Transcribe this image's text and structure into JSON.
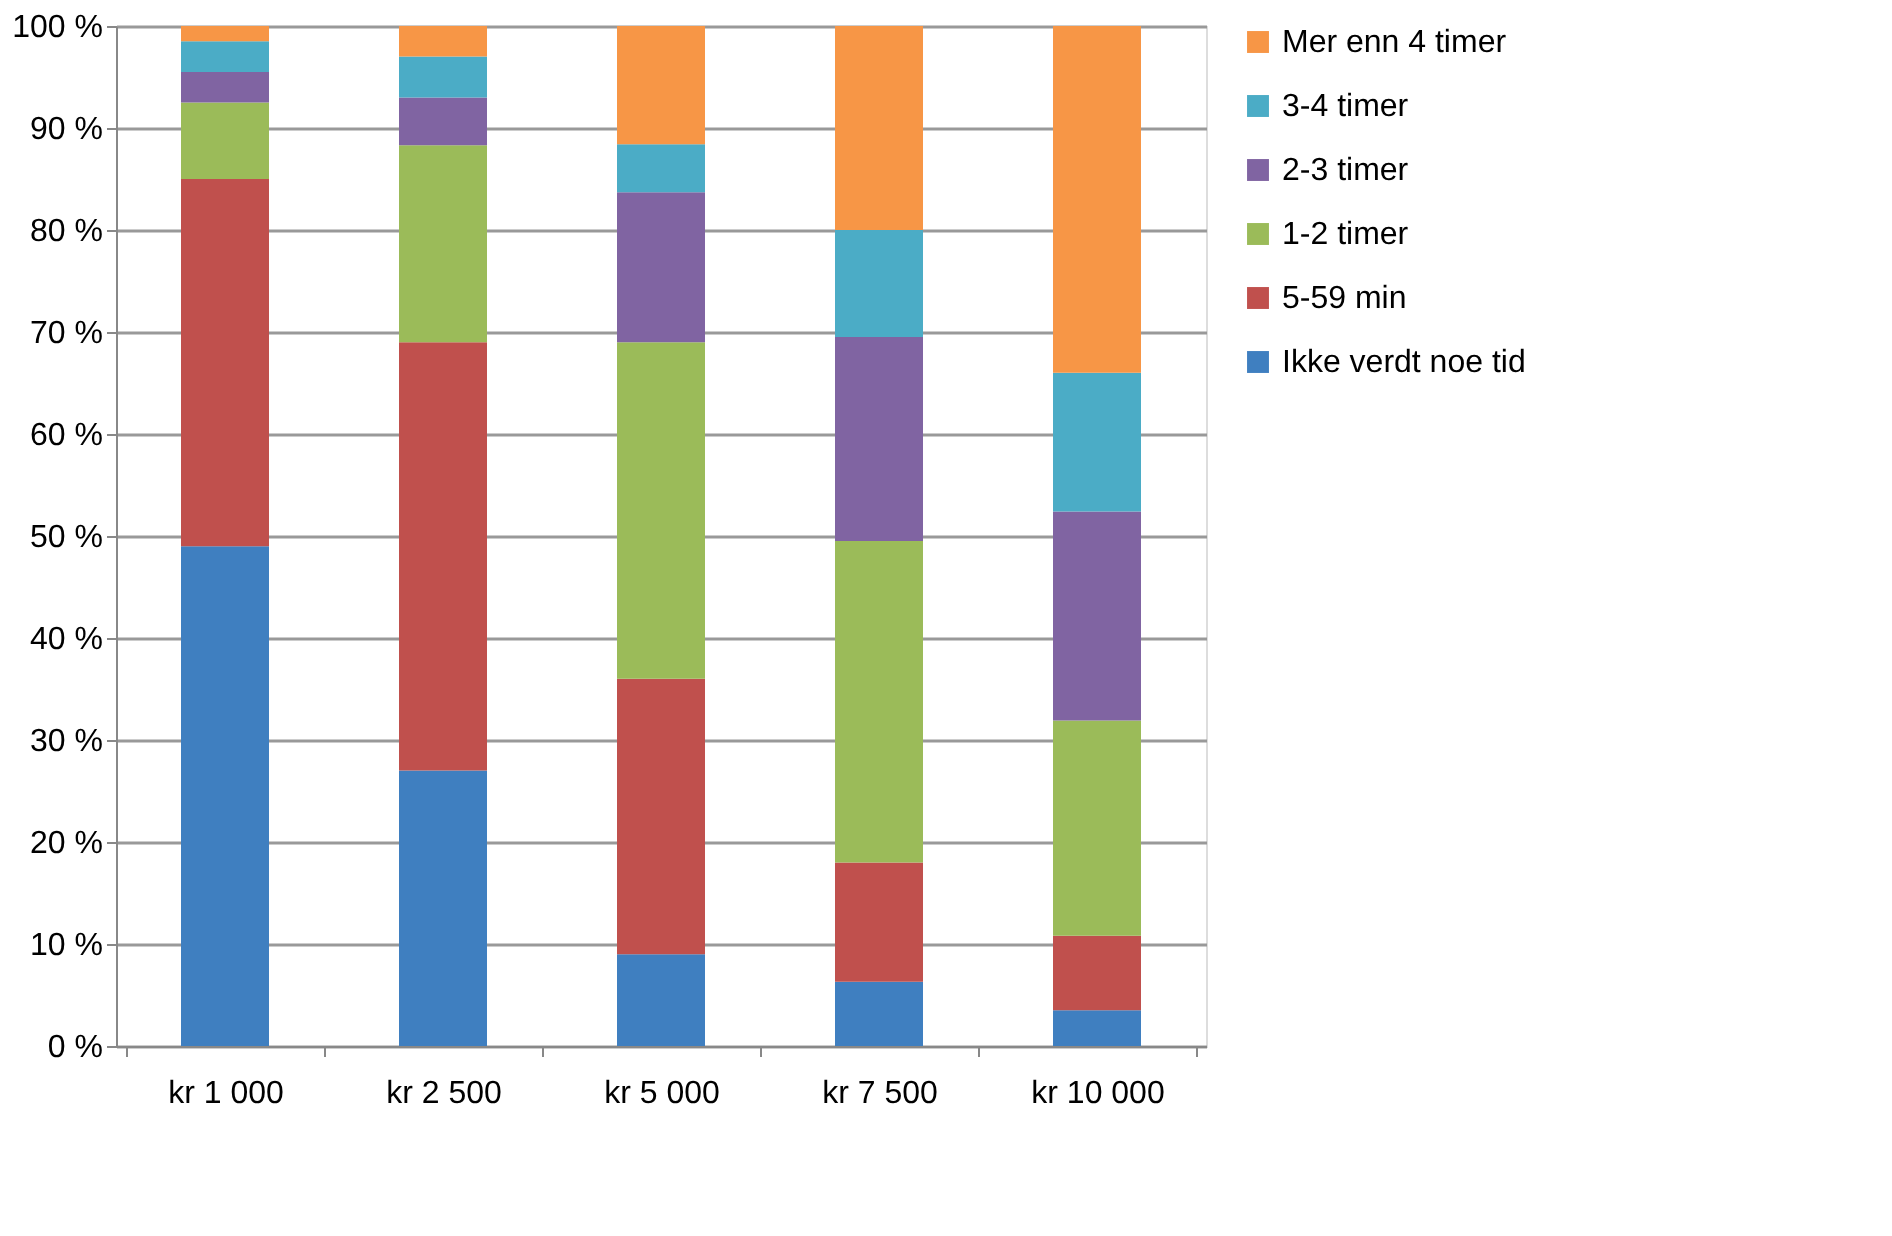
{
  "chart_data": {
    "type": "bar",
    "stacked": true,
    "categories": [
      "kr 1 000",
      "kr 2 500",
      "kr 5 000",
      "kr 7 500",
      "kr 10 000"
    ],
    "series": [
      {
        "name": "Ikke verdt noe tid",
        "color": "#3f7fc0",
        "values": [
          49,
          27,
          9,
          6.3,
          3.5
        ]
      },
      {
        "name": "5-59 min",
        "color": "#c0504d",
        "values": [
          36,
          42,
          27,
          11.7,
          7.3
        ]
      },
      {
        "name": "1-2 timer",
        "color": "#9bbb59",
        "values": [
          7.5,
          19.3,
          33,
          31.5,
          21.1
        ]
      },
      {
        "name": "2-3 timer",
        "color": "#8064a2",
        "values": [
          3,
          4.7,
          14.7,
          20,
          20.5
        ]
      },
      {
        "name": "3-4 timer",
        "color": "#4bacc6",
        "values": [
          3,
          4,
          4.7,
          10.5,
          13.6
        ]
      },
      {
        "name": "Mer enn 4 timer",
        "color": "#f79646",
        "values": [
          1.5,
          3,
          11.6,
          20,
          34
        ]
      }
    ],
    "ylim": [
      0,
      100
    ],
    "yticks": [
      {
        "value": 0,
        "label": "0 %"
      },
      {
        "value": 10,
        "label": "10 %"
      },
      {
        "value": 20,
        "label": "20 %"
      },
      {
        "value": 30,
        "label": "30 %"
      },
      {
        "value": 40,
        "label": "40 %"
      },
      {
        "value": 50,
        "label": "50 %"
      },
      {
        "value": 60,
        "label": "60 %"
      },
      {
        "value": 70,
        "label": "70 %"
      },
      {
        "value": 80,
        "label": "80 %"
      },
      {
        "value": 90,
        "label": "90 %"
      },
      {
        "value": 100,
        "label": "100 %"
      }
    ],
    "grid": "y",
    "legend": "right"
  }
}
